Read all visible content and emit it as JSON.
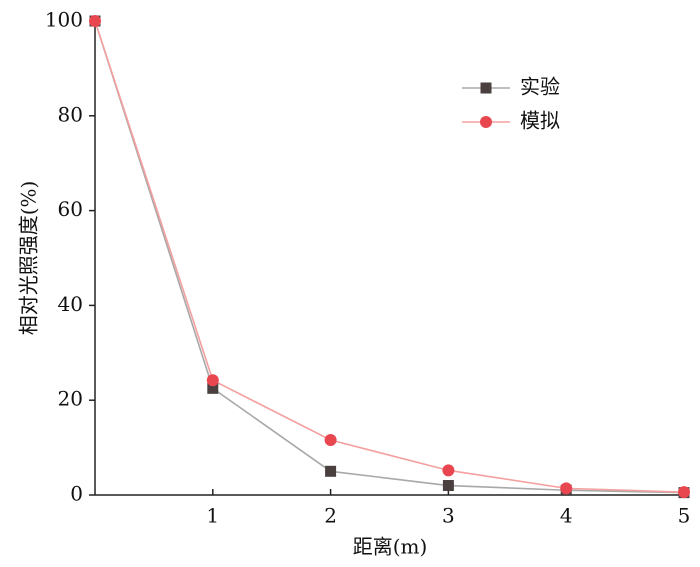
{
  "chart_data": {
    "type": "line",
    "x_label": "距离(m)",
    "y_label": "相对光照强度(%)",
    "x": [
      0,
      1,
      2,
      3,
      4,
      5
    ],
    "series": [
      {
        "name": "实验",
        "color": "#4a4040",
        "line_color": "#a8a8a8",
        "marker": "square",
        "values": [
          100,
          22.5,
          5,
          2,
          1,
          0.5
        ]
      },
      {
        "name": "模拟",
        "color": "#e8474f",
        "line_color": "#f4a0a0",
        "marker": "circle",
        "values": [
          100,
          24.2,
          11.6,
          5.2,
          1.4,
          0.6
        ]
      }
    ],
    "xlim": [
      0,
      5
    ],
    "xticks": [
      1,
      2,
      3,
      4,
      5
    ],
    "ylim": [
      0,
      100
    ],
    "yticks": [
      0,
      20,
      40,
      60,
      80,
      100
    ],
    "legend": "upper right"
  }
}
